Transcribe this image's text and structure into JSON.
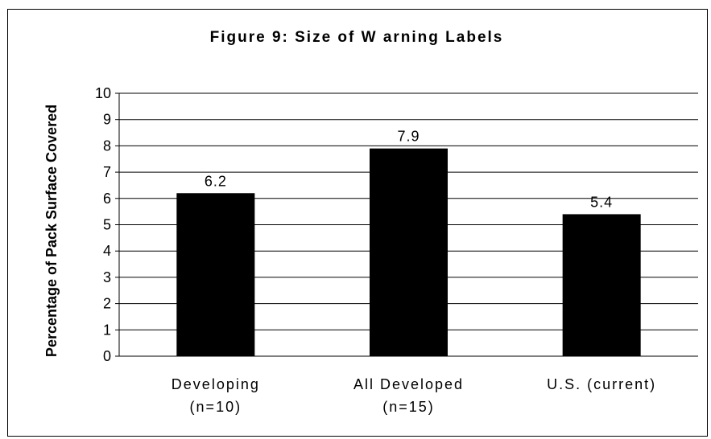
{
  "chart_data": {
    "type": "bar",
    "title": "Figure 9:  Size of W arning Labels",
    "ylabel": "Percentage of Pack Surface Covered",
    "xlabel": "",
    "ylim": [
      0,
      10
    ],
    "yticks": [
      "0",
      "1",
      "2",
      "3",
      "4",
      "5",
      "6",
      "7",
      "8",
      "9",
      "10"
    ],
    "grid": true,
    "categories": [
      [
        "Developing",
        "(n=10)"
      ],
      [
        "All Developed",
        "(n=15)"
      ],
      [
        "U.S. (current)"
      ]
    ],
    "values": [
      6.2,
      7.9,
      5.4
    ],
    "data_labels": [
      "6.2",
      "7.9",
      "5.4"
    ],
    "bar_color": "#000000"
  }
}
